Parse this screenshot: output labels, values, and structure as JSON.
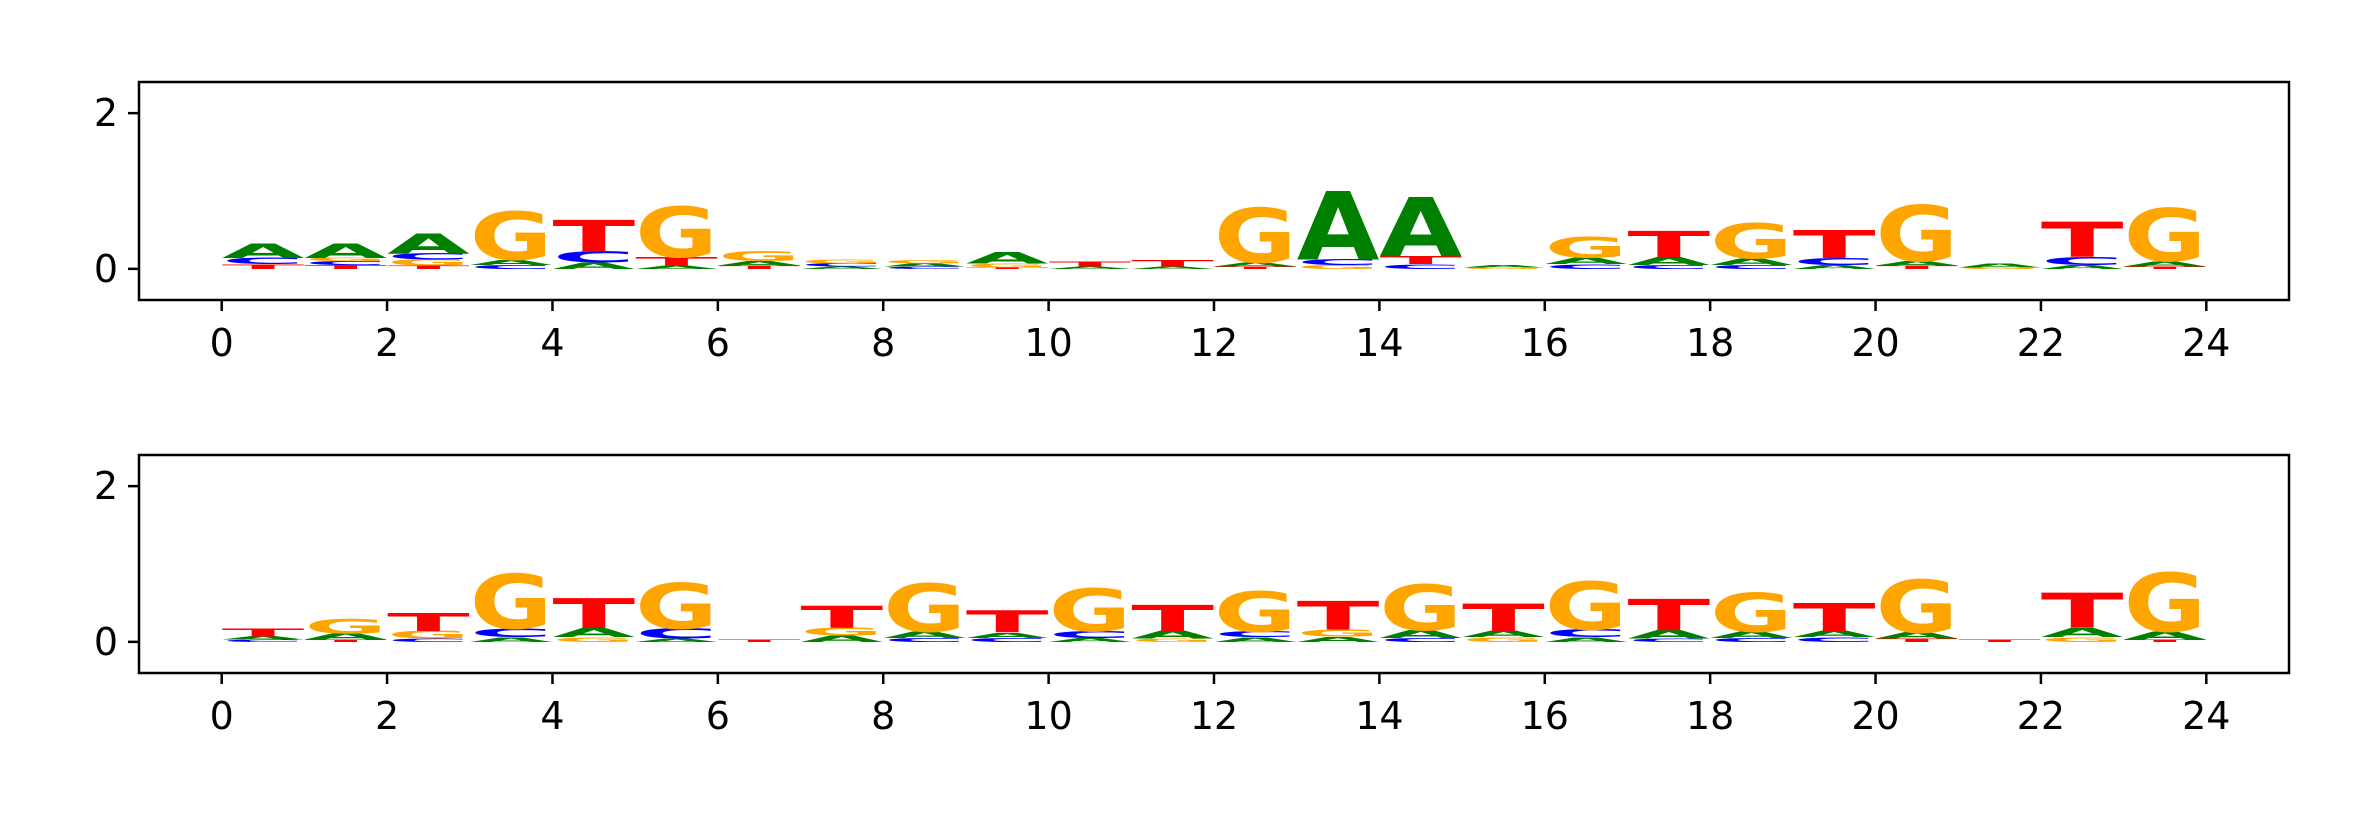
{
  "colors": {
    "A": "#008000",
    "C": "#0000ff",
    "G": "#ffa500",
    "T": "#ff0000",
    "axis": "#000000"
  },
  "chart_data": [
    {
      "type": "sequence-logo",
      "title": "",
      "xlabel": "",
      "ylabel": "",
      "xlim": [
        -1,
        25
      ],
      "ylim": [
        -0.4,
        2.4
      ],
      "xticks": [
        "0",
        "2",
        "4",
        "6",
        "8",
        "10",
        "12",
        "14",
        "16",
        "18",
        "20",
        "22",
        "24"
      ],
      "yticks": [
        "0",
        "2"
      ],
      "positions": [
        {
          "x": 0,
          "letters": [
            {
              "b": "T",
              "h": 0.06
            },
            {
              "b": "C",
              "h": 0.08
            },
            {
              "b": "A",
              "h": 0.18
            }
          ]
        },
        {
          "x": 1,
          "letters": [
            {
              "b": "T",
              "h": 0.05
            },
            {
              "b": "C",
              "h": 0.05
            },
            {
              "b": "G",
              "h": 0.04
            },
            {
              "b": "A",
              "h": 0.18
            }
          ]
        },
        {
          "x": 2,
          "letters": [
            {
              "b": "T",
              "h": 0.04
            },
            {
              "b": "G",
              "h": 0.08
            },
            {
              "b": "C",
              "h": 0.08
            },
            {
              "b": "A",
              "h": 0.26
            }
          ]
        },
        {
          "x": 3,
          "letters": [
            {
              "b": "C",
              "h": 0.05
            },
            {
              "b": "A",
              "h": 0.07
            },
            {
              "b": "G",
              "h": 0.62
            }
          ]
        },
        {
          "x": 4,
          "letters": [
            {
              "b": "A",
              "h": 0.08
            },
            {
              "b": "C",
              "h": 0.15
            },
            {
              "b": "T",
              "h": 0.4
            }
          ]
        },
        {
          "x": 5,
          "letters": [
            {
              "b": "A",
              "h": 0.04
            },
            {
              "b": "T",
              "h": 0.11
            },
            {
              "b": "G",
              "h": 0.65
            }
          ]
        },
        {
          "x": 6,
          "letters": [
            {
              "b": "T",
              "h": 0.04
            },
            {
              "b": "A",
              "h": 0.06
            },
            {
              "b": "G",
              "h": 0.12
            }
          ]
        },
        {
          "x": 7,
          "letters": [
            {
              "b": "A",
              "h": 0.03
            },
            {
              "b": "C",
              "h": 0.04
            },
            {
              "b": "G",
              "h": 0.05
            }
          ]
        },
        {
          "x": 8,
          "letters": [
            {
              "b": "C",
              "h": 0.03
            },
            {
              "b": "A",
              "h": 0.04
            },
            {
              "b": "G",
              "h": 0.04
            }
          ]
        },
        {
          "x": 9,
          "letters": [
            {
              "b": "T",
              "h": 0.02
            },
            {
              "b": "G",
              "h": 0.05
            },
            {
              "b": "A",
              "h": 0.15
            }
          ]
        },
        {
          "x": 10,
          "letters": [
            {
              "b": "A",
              "h": 0.03
            },
            {
              "b": "T",
              "h": 0.07
            }
          ]
        },
        {
          "x": 11,
          "letters": [
            {
              "b": "A",
              "h": 0.03
            },
            {
              "b": "T",
              "h": 0.08
            }
          ]
        },
        {
          "x": 12,
          "letters": [
            {
              "b": "T",
              "h": 0.03
            },
            {
              "b": "A",
              "h": 0.05
            },
            {
              "b": "G",
              "h": 0.7
            }
          ]
        },
        {
          "x": 13,
          "letters": [
            {
              "b": "G",
              "h": 0.05
            },
            {
              "b": "C",
              "h": 0.07
            },
            {
              "b": "A",
              "h": 0.88
            }
          ]
        },
        {
          "x": 14,
          "letters": [
            {
              "b": "C",
              "h": 0.06
            },
            {
              "b": "T",
              "h": 0.1
            },
            {
              "b": "A",
              "h": 0.76
            }
          ]
        },
        {
          "x": 15,
          "letters": [
            {
              "b": "G",
              "h": 0.02
            },
            {
              "b": "A",
              "h": 0.03
            }
          ]
        },
        {
          "x": 16,
          "letters": [
            {
              "b": "C",
              "h": 0.06
            },
            {
              "b": "A",
              "h": 0.08
            },
            {
              "b": "G",
              "h": 0.27
            }
          ]
        },
        {
          "x": 17,
          "letters": [
            {
              "b": "C",
              "h": 0.05
            },
            {
              "b": "A",
              "h": 0.1
            },
            {
              "b": "T",
              "h": 0.33
            }
          ]
        },
        {
          "x": 18,
          "letters": [
            {
              "b": "C",
              "h": 0.05
            },
            {
              "b": "A",
              "h": 0.08
            },
            {
              "b": "G",
              "h": 0.45
            }
          ]
        },
        {
          "x": 19,
          "letters": [
            {
              "b": "A",
              "h": 0.05
            },
            {
              "b": "C",
              "h": 0.09
            },
            {
              "b": "T",
              "h": 0.36
            }
          ]
        },
        {
          "x": 20,
          "letters": [
            {
              "b": "T",
              "h": 0.04
            },
            {
              "b": "A",
              "h": 0.06
            },
            {
              "b": "G",
              "h": 0.72
            }
          ]
        },
        {
          "x": 21,
          "letters": [
            {
              "b": "G",
              "h": 0.02
            },
            {
              "b": "A",
              "h": 0.05
            }
          ]
        },
        {
          "x": 22,
          "letters": [
            {
              "b": "A",
              "h": 0.05
            },
            {
              "b": "C",
              "h": 0.1
            },
            {
              "b": "T",
              "h": 0.45
            }
          ]
        },
        {
          "x": 23,
          "letters": [
            {
              "b": "T",
              "h": 0.03
            },
            {
              "b": "A",
              "h": 0.07
            },
            {
              "b": "G",
              "h": 0.68
            }
          ]
        }
      ]
    },
    {
      "type": "sequence-logo",
      "title": "",
      "xlabel": "",
      "ylabel": "",
      "xlim": [
        -1,
        25
      ],
      "ylim": [
        -0.4,
        2.4
      ],
      "xticks": [
        "0",
        "2",
        "4",
        "6",
        "8",
        "10",
        "12",
        "14",
        "16",
        "18",
        "20",
        "22",
        "24"
      ],
      "yticks": [
        "0",
        "2"
      ],
      "positions": [
        {
          "x": 0,
          "letters": [
            {
              "b": "C",
              "h": 0.03
            },
            {
              "b": "A",
              "h": 0.04
            },
            {
              "b": "T",
              "h": 0.1
            }
          ]
        },
        {
          "x": 1,
          "letters": [
            {
              "b": "T",
              "h": 0.03
            },
            {
              "b": "A",
              "h": 0.08
            },
            {
              "b": "G",
              "h": 0.18
            }
          ]
        },
        {
          "x": 2,
          "letters": [
            {
              "b": "C",
              "h": 0.04
            },
            {
              "b": "G",
              "h": 0.1
            },
            {
              "b": "T",
              "h": 0.23
            }
          ]
        },
        {
          "x": 3,
          "letters": [
            {
              "b": "A",
              "h": 0.06
            },
            {
              "b": "C",
              "h": 0.11
            },
            {
              "b": "G",
              "h": 0.7
            }
          ]
        },
        {
          "x": 4,
          "letters": [
            {
              "b": "G",
              "h": 0.06
            },
            {
              "b": "A",
              "h": 0.12
            },
            {
              "b": "T",
              "h": 0.38
            }
          ]
        },
        {
          "x": 5,
          "letters": [
            {
              "b": "A",
              "h": 0.04
            },
            {
              "b": "C",
              "h": 0.13
            },
            {
              "b": "G",
              "h": 0.58
            }
          ]
        },
        {
          "x": 6,
          "letters": [
            {
              "b": "T",
              "h": 0.03
            }
          ]
        },
        {
          "x": 7,
          "letters": [
            {
              "b": "A",
              "h": 0.08
            },
            {
              "b": "G",
              "h": 0.1
            },
            {
              "b": "T",
              "h": 0.28
            }
          ]
        },
        {
          "x": 8,
          "letters": [
            {
              "b": "C",
              "h": 0.05
            },
            {
              "b": "A",
              "h": 0.08
            },
            {
              "b": "G",
              "h": 0.62
            }
          ]
        },
        {
          "x": 9,
          "letters": [
            {
              "b": "C",
              "h": 0.05
            },
            {
              "b": "A",
              "h": 0.07
            },
            {
              "b": "T",
              "h": 0.28
            }
          ]
        },
        {
          "x": 10,
          "letters": [
            {
              "b": "A",
              "h": 0.05
            },
            {
              "b": "C",
              "h": 0.09
            },
            {
              "b": "G",
              "h": 0.55
            }
          ]
        },
        {
          "x": 11,
          "letters": [
            {
              "b": "G",
              "h": 0.04
            },
            {
              "b": "A",
              "h": 0.1
            },
            {
              "b": "T",
              "h": 0.33
            }
          ]
        },
        {
          "x": 12,
          "letters": [
            {
              "b": "A",
              "h": 0.06
            },
            {
              "b": "C",
              "h": 0.07
            },
            {
              "b": "G",
              "h": 0.52
            }
          ]
        },
        {
          "x": 13,
          "letters": [
            {
              "b": "A",
              "h": 0.07
            },
            {
              "b": "G",
              "h": 0.09
            },
            {
              "b": "T",
              "h": 0.37
            }
          ]
        },
        {
          "x": 14,
          "letters": [
            {
              "b": "C",
              "h": 0.05
            },
            {
              "b": "A",
              "h": 0.1
            },
            {
              "b": "G",
              "h": 0.58
            }
          ]
        },
        {
          "x": 15,
          "letters": [
            {
              "b": "G",
              "h": 0.06
            },
            {
              "b": "A",
              "h": 0.08
            },
            {
              "b": "T",
              "h": 0.35
            }
          ]
        },
        {
          "x": 16,
          "letters": [
            {
              "b": "A",
              "h": 0.06
            },
            {
              "b": "C",
              "h": 0.1
            },
            {
              "b": "G",
              "h": 0.62
            }
          ]
        },
        {
          "x": 17,
          "letters": [
            {
              "b": "C",
              "h": 0.04
            },
            {
              "b": "A",
              "h": 0.11
            },
            {
              "b": "T",
              "h": 0.4
            }
          ]
        },
        {
          "x": 18,
          "letters": [
            {
              "b": "C",
              "h": 0.05
            },
            {
              "b": "A",
              "h": 0.08
            },
            {
              "b": "G",
              "h": 0.5
            }
          ]
        },
        {
          "x": 19,
          "letters": [
            {
              "b": "C",
              "h": 0.06
            },
            {
              "b": "A",
              "h": 0.08
            },
            {
              "b": "T",
              "h": 0.36
            }
          ]
        },
        {
          "x": 20,
          "letters": [
            {
              "b": "T",
              "h": 0.04
            },
            {
              "b": "A",
              "h": 0.08
            },
            {
              "b": "G",
              "h": 0.68
            }
          ]
        },
        {
          "x": 21,
          "letters": [
            {
              "b": "T",
              "h": 0.03
            }
          ]
        },
        {
          "x": 22,
          "letters": [
            {
              "b": "G",
              "h": 0.06
            },
            {
              "b": "A",
              "h": 0.12
            },
            {
              "b": "T",
              "h": 0.45
            }
          ]
        },
        {
          "x": 23,
          "letters": [
            {
              "b": "T",
              "h": 0.03
            },
            {
              "b": "A",
              "h": 0.1
            },
            {
              "b": "G",
              "h": 0.75
            }
          ]
        }
      ]
    }
  ]
}
